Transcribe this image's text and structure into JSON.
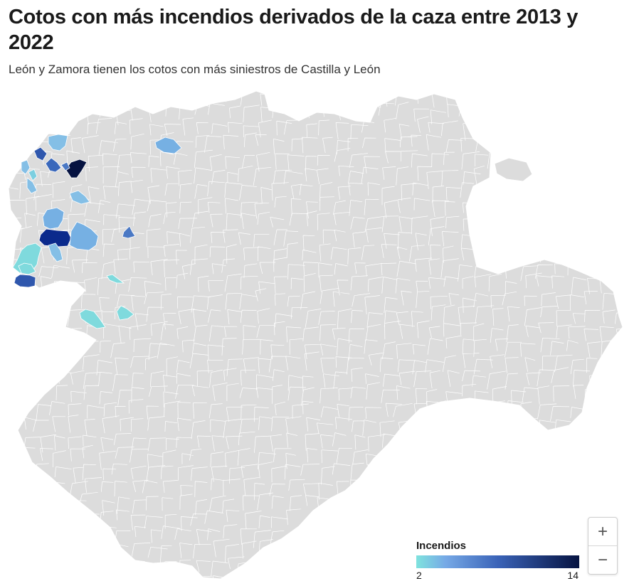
{
  "header": {
    "title": "Cotos con más incendios derivados de la caza entre 2013 y 2022",
    "subtitle": "León y Zamora tienen los cotos con más siniestros de Castilla y León"
  },
  "map": {
    "base_color": "#dcdcdc",
    "border_color": "#ffffff",
    "highlighted_regions": [
      {
        "incendios": 14,
        "color": "#061341"
      },
      {
        "incendios": 12,
        "color": "#0b2a8c"
      },
      {
        "incendios": 9,
        "color": "#2f57ad"
      },
      {
        "incendios": 8,
        "color": "#3a68bb"
      },
      {
        "incendios": 7,
        "color": "#4a78c4"
      },
      {
        "incendios": 5,
        "color": "#76b0e3"
      },
      {
        "incendios": 4,
        "color": "#84bfe6"
      },
      {
        "incendios": 3,
        "color": "#7ccfe0"
      },
      {
        "incendios": 2,
        "color": "#7fdadd"
      }
    ]
  },
  "legend": {
    "title": "Incendios",
    "min": "2",
    "max": "14",
    "color_low": "#7fe3de",
    "color_mid1": "#76a9e6",
    "color_mid2": "#3a63b8",
    "color_high": "#061341"
  },
  "zoom": {
    "in_label": "+",
    "out_label": "−"
  }
}
